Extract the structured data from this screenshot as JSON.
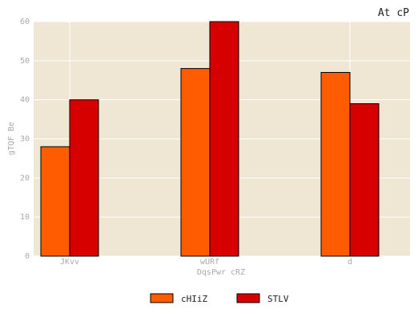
{
  "chart_data": {
    "type": "bar",
    "title": "At cP",
    "xlabel": "DqsPwr cRZ",
    "ylabel": "gTQF Be",
    "categories": [
      "JKvv",
      "wURf",
      "d"
    ],
    "series": [
      {
        "name": "cHIiZ",
        "values": [
          28,
          48,
          47
        ]
      },
      {
        "name": "STLV",
        "values": [
          40,
          60,
          39
        ]
      }
    ],
    "ylim": [
      0,
      60
    ],
    "yticks": [
      0,
      10,
      20,
      30,
      40,
      50,
      60
    ],
    "grid": true,
    "legend_position": "bottom-center"
  },
  "colors": {
    "background": "#efe7d4",
    "grid": "#ffffff",
    "series": [
      "#ff5b00",
      "#d60000"
    ],
    "bar_edge": "#000000"
  }
}
